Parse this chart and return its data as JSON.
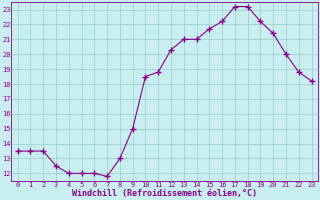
{
  "x": [
    0,
    1,
    2,
    3,
    4,
    5,
    6,
    7,
    8,
    9,
    10,
    11,
    12,
    13,
    14,
    15,
    16,
    17,
    18,
    19,
    20,
    21,
    22,
    23
  ],
  "y": [
    13.5,
    13.5,
    13.5,
    12.5,
    12,
    12,
    12,
    11.8,
    13,
    15,
    18.5,
    18.8,
    20.3,
    21,
    21,
    21.7,
    22.2,
    23.2,
    23.2,
    22.2,
    21.4,
    20,
    18.8,
    18.2
  ],
  "line_color": "#880088",
  "marker": "+",
  "marker_color": "#880088",
  "bg_color": "#c8eef0",
  "grid_color": "#99cccc",
  "xlabel": "Windchill (Refroidissement éolien,°C)",
  "xlabel_color": "#880088",
  "tick_color": "#880088",
  "ylim": [
    11.5,
    23.5
  ],
  "xlim": [
    -0.5,
    23.5
  ],
  "yticks": [
    12,
    13,
    14,
    15,
    16,
    17,
    18,
    19,
    20,
    21,
    22,
    23
  ],
  "xticks": [
    0,
    1,
    2,
    3,
    4,
    5,
    6,
    7,
    8,
    9,
    10,
    11,
    12,
    13,
    14,
    15,
    16,
    17,
    18,
    19,
    20,
    21,
    22,
    23
  ],
  "tick_fontsize": 5.0,
  "xlabel_fontsize": 6.0,
  "marker_size": 4,
  "linewidth": 0.8
}
